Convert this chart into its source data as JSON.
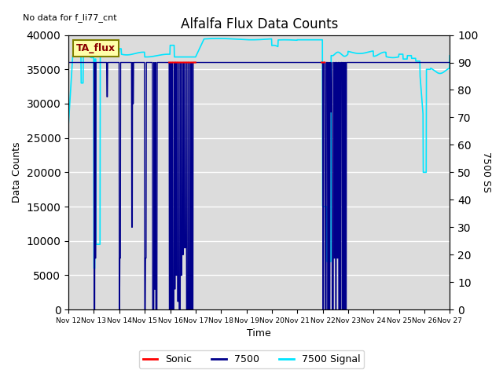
{
  "title": "Alfalfa Flux Data Counts",
  "no_data_text": "No data for f_li77_cnt",
  "ta_flux_label": "TA_flux",
  "xlabel": "Time",
  "ylabel_left": "Data Counts",
  "ylabel_right": "7500 SS",
  "ylim_left": [
    0,
    40000
  ],
  "ylim_right": [
    0,
    100
  ],
  "background_color": "#dcdcdc",
  "legend_entries": [
    "Sonic",
    "7500",
    "7500 Signal"
  ],
  "sonic_color": "#ff0000",
  "blue7500_color": "#00008b",
  "signal_color": "#00e5ff",
  "x_tick_labels": [
    "Nov 12",
    "Nov 13",
    "Nov 14",
    "Nov 15",
    "Nov 16",
    "Nov 17",
    "Nov 18",
    "Nov 19",
    "Nov 20",
    "Nov 21",
    "Nov 22",
    "Nov 23",
    "Nov 24",
    "Nov 25",
    "Nov 26",
    "Nov 27"
  ],
  "x_tick_positions": [
    0,
    24,
    48,
    72,
    96,
    120,
    144,
    168,
    192,
    216,
    240,
    264,
    288,
    312,
    336,
    360
  ],
  "yticks_left": [
    0,
    5000,
    10000,
    15000,
    20000,
    25000,
    30000,
    35000,
    40000
  ],
  "yticks_right": [
    0,
    10,
    20,
    30,
    40,
    50,
    60,
    70,
    80,
    90,
    100
  ]
}
